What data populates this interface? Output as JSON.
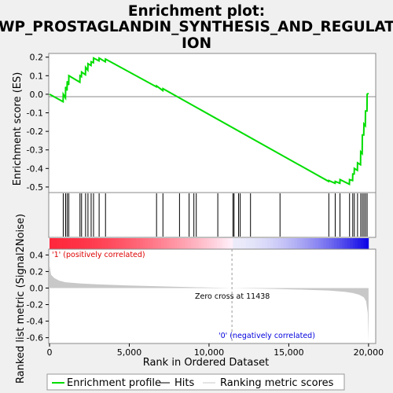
{
  "title_line1": "Enrichment plot:",
  "title_line2": "WP_PROSTAGLANDIN_SYNTHESIS_AND_REGULAT",
  "title_line3": "ION",
  "ylabel_top": "Enrichment score (ES)",
  "ylabel_bottom": "Ranked list metric (Signal2Noise)",
  "xlabel": "Rank in Ordered Dataset",
  "annotations": {
    "positive": "'1' (positively correlated)",
    "negative": "'0' (negatively correlated)",
    "zero_cross": "Zero cross at 11438"
  },
  "legend": {
    "enrichment": "Enrichment profile",
    "hits": "Hits",
    "ranking": "Ranking metric scores"
  },
  "colors": {
    "es_line": "#00dd00",
    "hits": "#000000",
    "ranking_fill": "#c8c8c8",
    "positive_text": "#dd0000",
    "negative_text": "#0000dd"
  },
  "chart_data": [
    {
      "type": "line",
      "name": "enrichment-profile",
      "ylabel": "Enrichment score (ES)",
      "xlim": [
        0,
        20400
      ],
      "ylim": [
        -0.53,
        0.22
      ],
      "yticks": [
        0.2,
        0.1,
        0.0,
        -0.1,
        -0.2,
        -0.3,
        -0.4,
        -0.5
      ],
      "ytick_labels": [
        "0.2",
        "0.1",
        "0.0",
        "-0.1",
        "-0.2",
        "-0.3",
        "-0.4",
        "-0.5"
      ],
      "x": [
        0,
        850,
        860,
        1000,
        1010,
        1100,
        1110,
        1200,
        1210,
        1900,
        1910,
        2000,
        2010,
        2250,
        2260,
        2400,
        2410,
        2600,
        2610,
        2750,
        2760,
        3100,
        3110,
        3500,
        3510,
        6700,
        6710,
        7100,
        7110,
        17500,
        17510,
        17900,
        17910,
        18200,
        18210,
        18800,
        18810,
        19000,
        19010,
        19100,
        19110,
        19300,
        19310,
        19500,
        19510,
        19600,
        19610,
        19700,
        19710,
        19800,
        19810,
        19900,
        19910,
        20000
      ],
      "y": [
        0.0,
        -0.04,
        0.0,
        -0.02,
        0.04,
        0.02,
        0.07,
        0.05,
        0.1,
        0.065,
        0.1,
        0.095,
        0.12,
        0.105,
        0.145,
        0.13,
        0.165,
        0.155,
        0.175,
        0.17,
        0.195,
        0.18,
        0.195,
        0.175,
        0.19,
        0.04,
        0.045,
        0.02,
        0.03,
        -0.47,
        -0.465,
        -0.48,
        -0.47,
        -0.48,
        -0.46,
        -0.485,
        -0.46,
        -0.465,
        -0.43,
        -0.43,
        -0.4,
        -0.41,
        -0.37,
        -0.38,
        -0.31,
        -0.32,
        -0.22,
        -0.22,
        -0.16,
        -0.17,
        -0.09,
        -0.09,
        0.0,
        0.005
      ]
    },
    {
      "type": "hits",
      "name": "hits",
      "positions": [
        860,
        1010,
        1110,
        1210,
        1910,
        2010,
        2260,
        2410,
        2610,
        2760,
        3110,
        3510,
        6710,
        7110,
        8150,
        8750,
        9050,
        9200,
        10550,
        11500,
        11570,
        11850,
        11950,
        12600,
        14450,
        17510,
        17910,
        18210,
        18810,
        19010,
        19110,
        19310,
        19510,
        19610,
        19710,
        19810,
        19910
      ]
    },
    {
      "type": "area",
      "name": "ranking-metric",
      "ylabel": "Ranked list metric (Signal2Noise)",
      "xlabel": "Rank in Ordered Dataset",
      "xlim": [
        0,
        20400
      ],
      "ylim": [
        -0.67,
        0.47
      ],
      "yticks": [
        0.4,
        0.2,
        0.0,
        -0.2,
        -0.4,
        -0.6
      ],
      "ytick_labels": [
        "0.4",
        "0.2",
        "0.0",
        "-0.2",
        "-0.4",
        "-0.6"
      ],
      "xticks": [
        0,
        5000,
        10000,
        15000,
        20000
      ],
      "xtick_labels": [
        "0",
        "5,000",
        "10,000",
        "15,000",
        "20,000"
      ],
      "zero_cross": 11438,
      "x": [
        0,
        100,
        300,
        600,
        1000,
        2000,
        3000,
        5000,
        8000,
        11438,
        14000,
        16000,
        17500,
        18500,
        19000,
        19400,
        19700,
        19850,
        19950,
        20000
      ],
      "y": [
        0.27,
        0.16,
        0.12,
        0.09,
        0.07,
        0.055,
        0.045,
        0.03,
        0.015,
        0.0,
        -0.01,
        -0.02,
        -0.03,
        -0.045,
        -0.06,
        -0.08,
        -0.11,
        -0.16,
        -0.3,
        -0.64
      ]
    }
  ]
}
